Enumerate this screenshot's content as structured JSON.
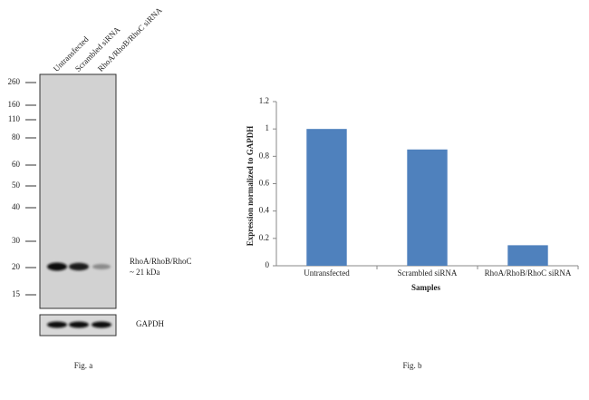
{
  "blot": {
    "lanes": [
      "Untransfected",
      "Scrambled siRNA",
      "RhoA/RhoB/RhoC siRNA"
    ],
    "markers": [
      260,
      160,
      110,
      80,
      60,
      50,
      40,
      30,
      20,
      15
    ],
    "band_label": "RhoA/RhoB/RhoC",
    "band_size": "~ 21 kDa",
    "control_label": "GAPDH",
    "caption": "Fig. a"
  },
  "chart_data": {
    "type": "bar",
    "categories": [
      "Untransfected",
      "Scrambled siRNA",
      "RhoA/RhoB/RhoC siRNA"
    ],
    "values": [
      1,
      0.85,
      0.15
    ],
    "color": "#4f81bd",
    "ylim": [
      0,
      1.2
    ],
    "yticks": [
      0,
      0.2,
      0.4,
      0.6,
      0.8,
      1,
      1.2
    ],
    "y_label": "Expression  normalized to GAPDH",
    "x_label": "Samples",
    "caption": "Fig. b",
    "grid": false
  }
}
